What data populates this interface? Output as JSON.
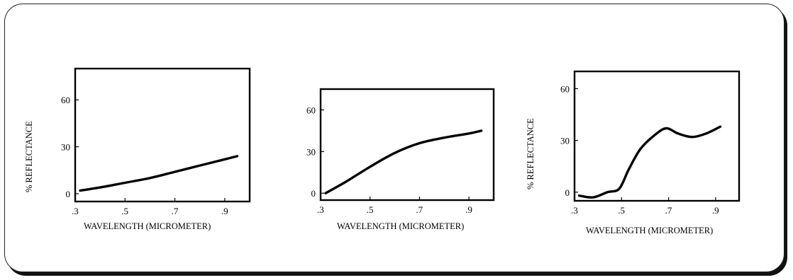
{
  "chart_data": [
    {
      "type": "line",
      "xlabel": "WAVELENGTH (MICROMETER)",
      "ylabel": "% REFLECTANCE",
      "xlim": [
        0.3,
        1.0
      ],
      "ylim": [
        -5,
        80
      ],
      "xticks": [
        ".3",
        ".5",
        ".7",
        ".9"
      ],
      "yticks": [
        "0",
        "30",
        "60"
      ],
      "x": [
        0.32,
        0.4,
        0.5,
        0.6,
        0.7,
        0.8,
        0.9,
        0.95
      ],
      "y": [
        2,
        4,
        7,
        10,
        14,
        18,
        22,
        24
      ]
    },
    {
      "type": "line",
      "xlabel": "WAVELENGTH (MICROMETER)",
      "ylabel": "",
      "xlim": [
        0.3,
        1.0
      ],
      "ylim": [
        -5,
        75
      ],
      "xticks": [
        ".3",
        ".5",
        ".7",
        ".9"
      ],
      "yticks": [
        "0",
        "30",
        "60"
      ],
      "x": [
        0.32,
        0.4,
        0.5,
        0.6,
        0.7,
        0.8,
        0.9,
        0.95
      ],
      "y": [
        0,
        8,
        19,
        29,
        36,
        40,
        43,
        45
      ]
    },
    {
      "type": "line",
      "xlabel": "WAVELENGTH (MICROMETER)",
      "ylabel": "% REFLECTANCE",
      "xlim": [
        0.3,
        1.0
      ],
      "ylim": [
        -5,
        70
      ],
      "xticks": [
        ".3",
        ".5",
        ".7",
        ".9"
      ],
      "yticks": [
        "0",
        "30",
        "60"
      ],
      "x": [
        0.32,
        0.38,
        0.44,
        0.49,
        0.53,
        0.58,
        0.64,
        0.69,
        0.74,
        0.8,
        0.86,
        0.92
      ],
      "y": [
        -2,
        -3,
        0,
        2,
        13,
        25,
        33,
        37,
        34,
        32,
        34,
        38
      ]
    }
  ]
}
